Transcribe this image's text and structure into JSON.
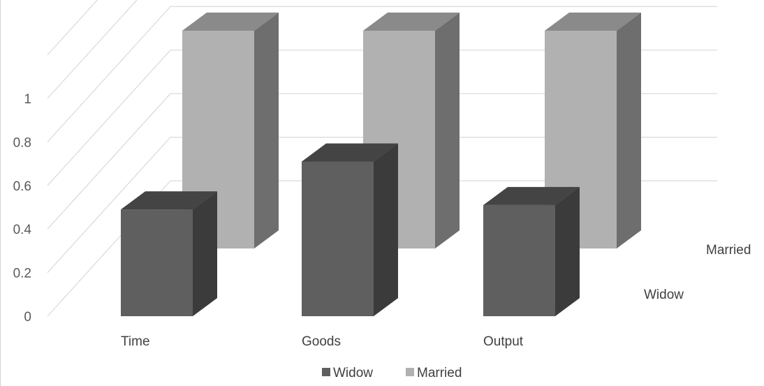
{
  "chart_data": {
    "type": "bar",
    "style": "3d-column",
    "categories": [
      "Time",
      "Goods",
      "Output"
    ],
    "series": [
      {
        "name": "Widow",
        "values": [
          0.49,
          0.71,
          0.51
        ],
        "color": "#5f5f5f"
      },
      {
        "name": "Married",
        "values": [
          1.0,
          1.0,
          1.0
        ],
        "color": "#b1b1b1"
      }
    ],
    "depth_labels": [
      "Widow",
      "Married"
    ],
    "y_ticks": [
      "0",
      "0.2",
      "0.4",
      "0.6",
      "0.8",
      "1"
    ],
    "ylim": [
      0,
      1.2
    ],
    "grid": true,
    "legend_position": "bottom"
  }
}
